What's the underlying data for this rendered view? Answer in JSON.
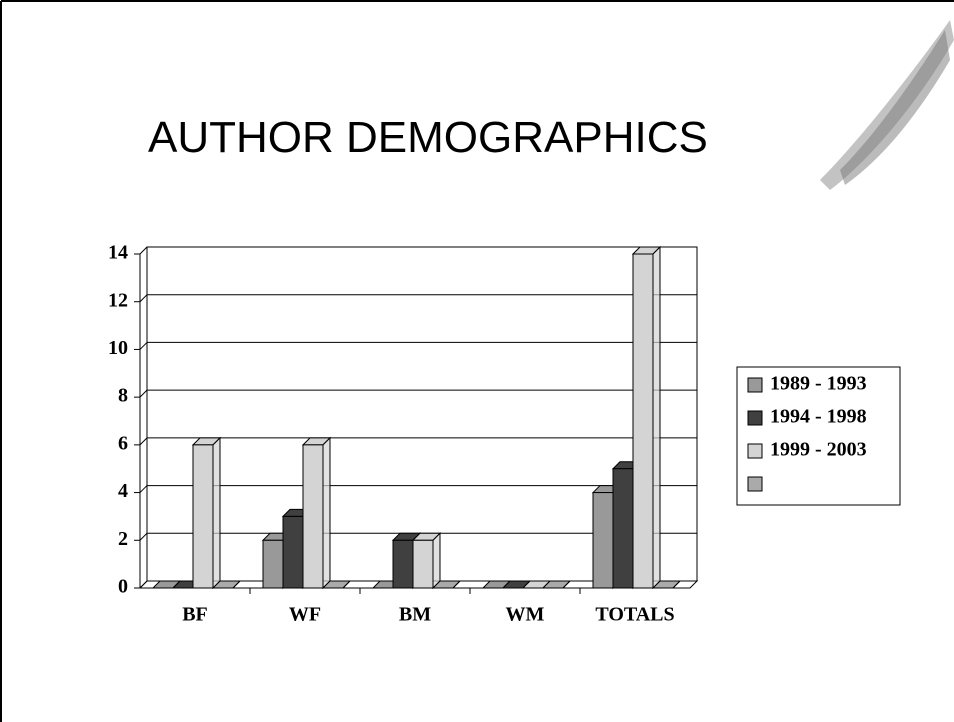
{
  "chart_data": {
    "type": "bar3d",
    "title": "AUTHOR DEMOGRAPHICS",
    "categories": [
      "BF",
      "WF",
      "BM",
      "WM",
      "TOTALS"
    ],
    "series": [
      {
        "name": "1989 - 1993",
        "color": "#999999",
        "values": [
          0,
          2,
          0,
          0,
          4
        ]
      },
      {
        "name": "1994 - 1998",
        "color": "#404040",
        "values": [
          0,
          3,
          2,
          0,
          5
        ]
      },
      {
        "name": "1999 - 2003",
        "color": "#d4d4d4",
        "values": [
          6,
          6,
          2,
          0,
          14
        ]
      },
      {
        "name": null,
        "color": "#aaaaaa",
        "values": [
          0,
          0,
          0,
          0,
          0
        ]
      }
    ],
    "ylim": [
      0,
      14
    ],
    "yticks": [
      0,
      2,
      4,
      6,
      8,
      10,
      12,
      14
    ],
    "grid": true,
    "legend": "right"
  }
}
